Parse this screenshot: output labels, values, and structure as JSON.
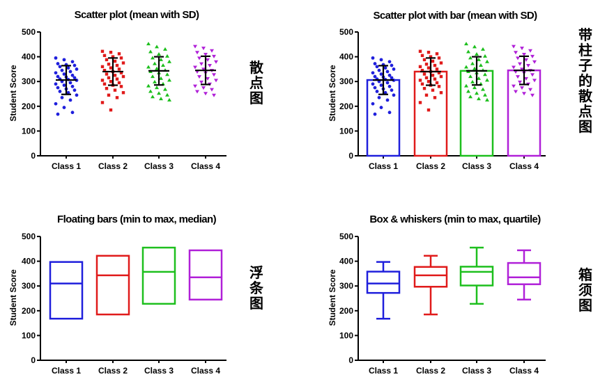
{
  "chart_data": [
    {
      "type": "scatter",
      "title": "Scatter plot (mean with SD)",
      "ylabel": "Student Score",
      "ylim": [
        0,
        500
      ],
      "yticks": [
        "0",
        "100",
        "200",
        "300",
        "400",
        "500"
      ],
      "categories": [
        "Class 1",
        "Class 2",
        "Class 3",
        "Class 4"
      ],
      "side_label": "散点图",
      "series": [
        {
          "category": "Class 1",
          "color": "#1f1fdc",
          "marker": "circle",
          "mean": 306,
          "sd": 58,
          "values": [
            395,
            388,
            380,
            372,
            368,
            365,
            360,
            355,
            350,
            345,
            340,
            335,
            330,
            325,
            320,
            318,
            315,
            310,
            308,
            305,
            300,
            295,
            290,
            285,
            280,
            275,
            270,
            265,
            260,
            255,
            245,
            235,
            225,
            210,
            195,
            175,
            168
          ]
        },
        {
          "category": "Class 2",
          "color": "#e01a1a",
          "marker": "square",
          "mean": 340,
          "sd": 55,
          "values": [
            422,
            418,
            412,
            405,
            400,
            395,
            388,
            382,
            375,
            370,
            365,
            360,
            355,
            350,
            345,
            340,
            335,
            330,
            325,
            320,
            315,
            310,
            305,
            300,
            295,
            290,
            285,
            280,
            272,
            265,
            255,
            245,
            235,
            215,
            185
          ]
        },
        {
          "category": "Class 3",
          "color": "#1dbf1d",
          "marker": "triangle-up",
          "mean": 343,
          "sd": 57,
          "values": [
            452,
            440,
            430,
            420,
            410,
            402,
            395,
            388,
            380,
            372,
            365,
            358,
            352,
            345,
            340,
            335,
            328,
            320,
            312,
            305,
            298,
            290,
            282,
            275,
            268,
            260,
            252,
            245,
            238,
            230,
            225
          ]
        },
        {
          "category": "Class 4",
          "color": "#b020d8",
          "marker": "triangle-down",
          "mean": 345,
          "sd": 57,
          "values": [
            442,
            435,
            425,
            418,
            410,
            402,
            395,
            388,
            380,
            372,
            365,
            358,
            350,
            345,
            340,
            335,
            328,
            320,
            312,
            305,
            298,
            290,
            282,
            275,
            268,
            260,
            252,
            245
          ]
        }
      ]
    },
    {
      "type": "bar",
      "title": "Scatter plot with bar (mean with SD)",
      "ylabel": "Student Score",
      "ylim": [
        0,
        500
      ],
      "yticks": [
        "0",
        "100",
        "200",
        "300",
        "400",
        "500"
      ],
      "categories": [
        "Class 1",
        "Class 2",
        "Class 3",
        "Class 4"
      ],
      "side_label": "带柱子的散点图",
      "values": [
        306,
        340,
        343,
        345
      ],
      "sd": [
        58,
        55,
        57,
        57
      ],
      "colors": [
        "#1f1fdc",
        "#e01a1a",
        "#1dbf1d",
        "#b020d8"
      ]
    },
    {
      "type": "bar",
      "title": "Floating bars (min to max, median)",
      "ylabel": "Student Score",
      "ylim": [
        0,
        500
      ],
      "yticks": [
        "0",
        "100",
        "200",
        "300",
        "400",
        "500"
      ],
      "categories": [
        "Class 1",
        "Class 2",
        "Class 3",
        "Class 4"
      ],
      "side_label": "浮条图",
      "min": [
        168,
        185,
        228,
        245
      ],
      "max": [
        397,
        422,
        455,
        444
      ],
      "median": [
        310,
        343,
        357,
        335
      ],
      "colors": [
        "#1f1fdc",
        "#e01a1a",
        "#1dbf1d",
        "#b020d8"
      ]
    },
    {
      "type": "box",
      "title": "Box & whiskers (min to max, quartile)",
      "ylabel": "Student Score",
      "ylim": [
        0,
        500
      ],
      "yticks": [
        "0",
        "100",
        "200",
        "300",
        "400",
        "500"
      ],
      "categories": [
        "Class 1",
        "Class 2",
        "Class 3",
        "Class 4"
      ],
      "side_label": "箱须图",
      "min": [
        168,
        185,
        228,
        245
      ],
      "q1": [
        272,
        297,
        302,
        307
      ],
      "median": [
        310,
        343,
        357,
        335
      ],
      "q3": [
        358,
        377,
        378,
        393
      ],
      "max": [
        397,
        422,
        455,
        444
      ],
      "colors": [
        "#1f1fdc",
        "#e01a1a",
        "#1dbf1d",
        "#b020d8"
      ]
    }
  ]
}
